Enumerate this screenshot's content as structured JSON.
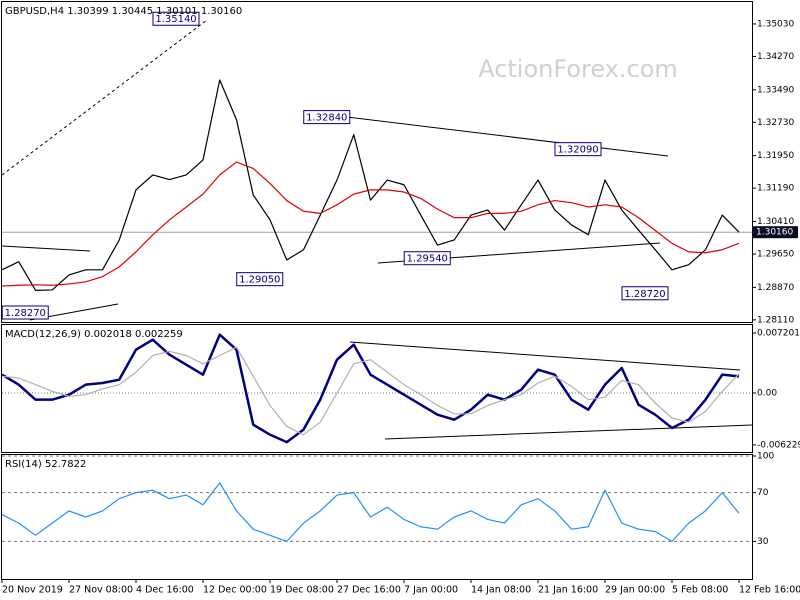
{
  "chart_data": [
    {
      "type": "line",
      "title": "GBPUSD,H4  1.30399 1.30445 1.30101 1.30160",
      "watermark": "ActionForex.com",
      "ylim": [
        1.2806,
        1.3552
      ],
      "yticks": [
        {
          "value": 1.3503,
          "label": "1.35030"
        },
        {
          "value": 1.3427,
          "label": "1.34270"
        },
        {
          "value": 1.3349,
          "label": "1.33490"
        },
        {
          "value": 1.3273,
          "label": "1.32730"
        },
        {
          "value": 1.3195,
          "label": "1.31950"
        },
        {
          "value": 1.3119,
          "label": "1.31190"
        },
        {
          "value": 1.3041,
          "label": "1.30410"
        },
        {
          "value": 1.2965,
          "label": "1.29650"
        },
        {
          "value": 1.2887,
          "label": "1.28870"
        },
        {
          "value": 1.2811,
          "label": "1.28110"
        }
      ],
      "grid": false,
      "series": [
        {
          "color": "#000000",
          "values": [
            1.2928,
            1.2947,
            1.288,
            1.2881,
            1.2916,
            1.2928,
            1.2928,
            1.2998,
            1.3115,
            1.315,
            1.3139,
            1.315,
            1.3185,
            1.3372,
            1.3279,
            1.3103,
            1.3045,
            1.2951,
            1.2975,
            1.3056,
            1.3138,
            1.3244,
            1.3091,
            1.3138,
            1.3127,
            1.3056,
            1.2986,
            1.2998,
            1.3056,
            1.3068,
            1.3021,
            1.308,
            1.3138,
            1.3068,
            1.3033,
            1.301,
            1.3138,
            1.3068,
            1.3021,
            1.2975,
            1.2928,
            1.294,
            1.2975,
            1.3056,
            1.3016
          ]
        },
        {
          "color": "#e00000",
          "values": [
            1.289,
            1.2892,
            1.2893,
            1.2892,
            1.2895,
            1.29,
            1.2912,
            1.2935,
            1.297,
            1.301,
            1.3045,
            1.3075,
            1.3105,
            1.315,
            1.318,
            1.3165,
            1.313,
            1.309,
            1.3065,
            1.306,
            1.308,
            1.3105,
            1.3115,
            1.3115,
            1.311,
            1.3095,
            1.307,
            1.305,
            1.305,
            1.306,
            1.306,
            1.3065,
            1.308,
            1.309,
            1.3085,
            1.3075,
            1.308,
            1.3075,
            1.305,
            1.302,
            1.299,
            1.297,
            1.2968,
            1.2975,
            1.299
          ]
        }
      ],
      "annotations": [
        {
          "label": "1.35140",
          "value": 1.3514,
          "x": 12
        },
        {
          "label": "1.32840",
          "value": 1.3284,
          "x": 21
        },
        {
          "label": "1.32090",
          "value": 1.3209,
          "x": 36
        },
        {
          "label": "1.29050",
          "value": 1.2905,
          "x": 17
        },
        {
          "label": "1.29540",
          "value": 1.2954,
          "x": 27
        },
        {
          "label": "1.28720",
          "value": 1.2872,
          "x": 40
        },
        {
          "label": "1.28270",
          "value": 1.2827,
          "x": 3
        }
      ],
      "last_price": {
        "value": 1.3016,
        "label": "1.30160"
      }
    },
    {
      "type": "line",
      "title": "MACD(12,26,9) 0.002018 0.002259",
      "ylim": [
        -0.00708,
        0.00804
      ],
      "yticks": [
        0.007201,
        {
          "value": 0,
          "label": "0.00"
        },
        -0.006229
      ],
      "grid": false,
      "zero_line": true,
      "series": [
        {
          "color": "#000080",
          "values": [
            0.0022,
            0.001,
            -0.0008,
            -0.0008,
            -0.0002,
            0.001,
            0.0012,
            0.0016,
            0.0052,
            0.0064,
            0.0046,
            0.0034,
            0.0022,
            0.007,
            0.0052,
            -0.0038,
            -0.005,
            -0.0059,
            -0.0044,
            -0.0008,
            0.004,
            0.0058,
            0.0022,
            0.001,
            -0.0002,
            -0.0014,
            -0.0026,
            -0.0032,
            -0.002,
            -0.0002,
            -0.0008,
            0.0004,
            0.0028,
            0.0022,
            -0.0008,
            -0.002,
            0.001,
            0.003,
            -0.0014,
            -0.0026,
            -0.0042,
            -0.0032,
            -0.0008,
            0.0022,
            0.002
          ]
        },
        {
          "color": "#b0b0b0",
          "values": [
            0.002,
            0.0018,
            0.001,
            0.0002,
            -0.0004,
            -0.0002,
            0.0005,
            0.001,
            0.0025,
            0.0045,
            0.005,
            0.0045,
            0.0035,
            0.0045,
            0.0055,
            0.002,
            -0.0015,
            -0.004,
            -0.005,
            -0.0035,
            0.0,
            0.0035,
            0.004,
            0.0025,
            0.001,
            -0.0002,
            -0.0015,
            -0.0025,
            -0.0025,
            -0.0015,
            -0.0008,
            -0.0002,
            0.0012,
            0.002,
            0.0008,
            -0.0008,
            -0.0005,
            0.0015,
            0.001,
            -0.0012,
            -0.003,
            -0.0035,
            -0.0022,
            0.0002,
            0.0023
          ]
        }
      ]
    },
    {
      "type": "line",
      "title": "RSI(14) 52.7822",
      "ylim": [
        0,
        100
      ],
      "yticks": [
        100,
        70,
        30
      ],
      "grid": true,
      "categories": [
        "20 Nov 2019",
        null,
        null,
        null,
        "27 Nov 08:00",
        null,
        null,
        null,
        "4 Dec 16:00",
        null,
        null,
        null,
        "12 Dec 00:00",
        null,
        null,
        null,
        "19 Dec 08:00",
        null,
        null,
        null,
        "27 Dec 16:00",
        null,
        null,
        null,
        "7 Jan 00:00",
        null,
        null,
        null,
        "14 Jan 08:00",
        null,
        null,
        null,
        "21 Jan 16:00",
        null,
        null,
        null,
        "29 Jan 00:00",
        null,
        null,
        null,
        "5 Feb 08:00",
        null,
        null,
        null,
        "12 Feb 16:00"
      ],
      "series": [
        {
          "color": "#1e90ff",
          "values": [
            52,
            45,
            35,
            45,
            55,
            50,
            55,
            65,
            70,
            72,
            65,
            68,
            60,
            78,
            55,
            40,
            35,
            30,
            45,
            55,
            68,
            70,
            50,
            58,
            48,
            42,
            40,
            50,
            55,
            48,
            45,
            60,
            65,
            55,
            40,
            42,
            72,
            45,
            40,
            38,
            30,
            45,
            55,
            70,
            53
          ]
        }
      ]
    }
  ]
}
